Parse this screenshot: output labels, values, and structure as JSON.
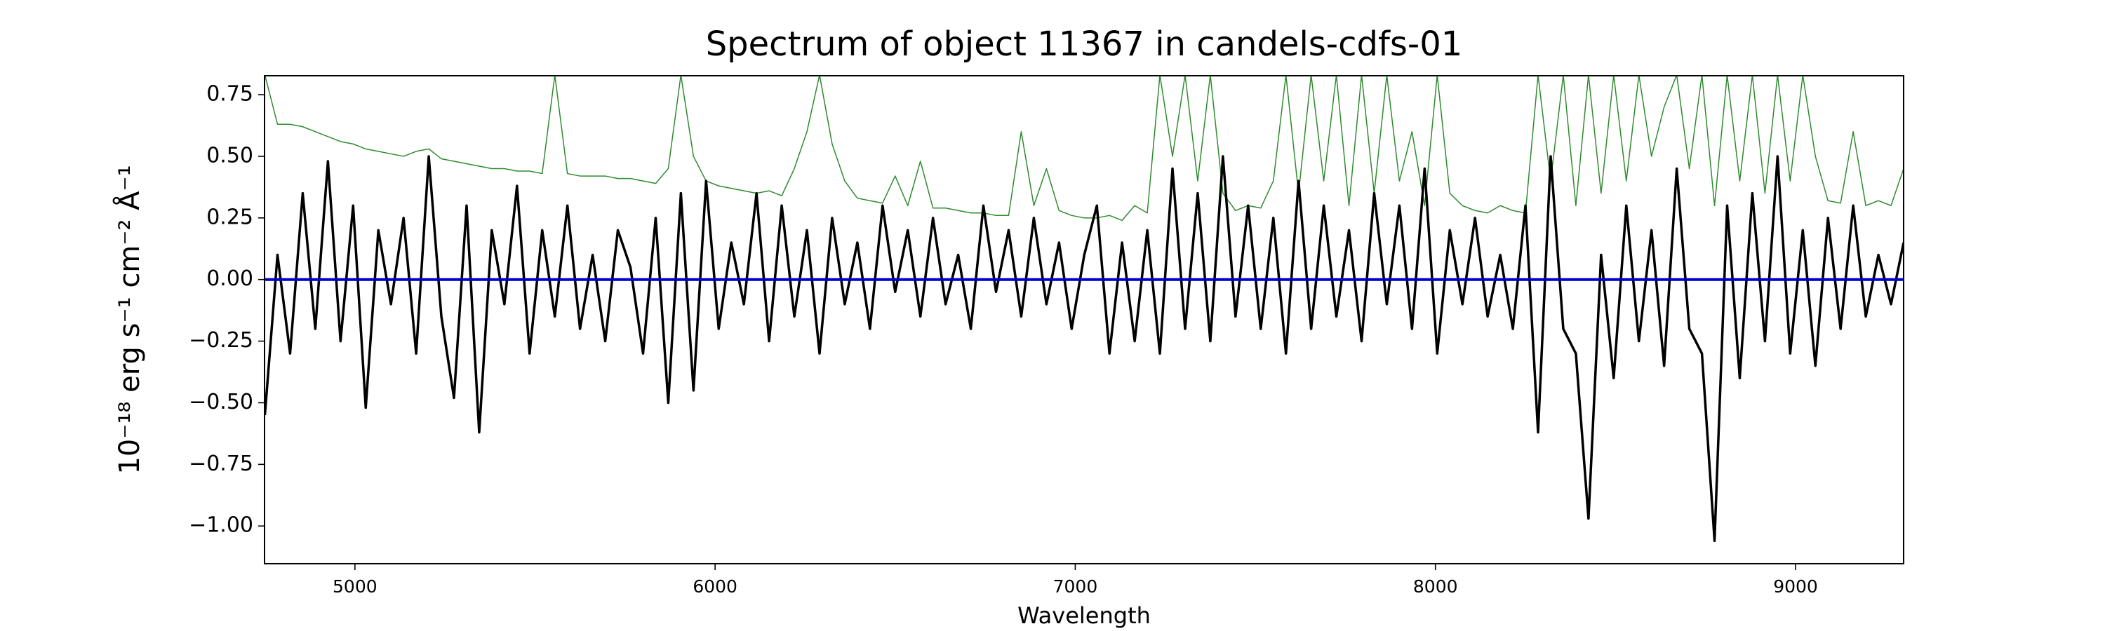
{
  "chart_data": {
    "type": "line",
    "title": "Spectrum of object 11367 in candels-cdfs-01",
    "xlabel": "Wavelength",
    "ylabel": "10⁻¹⁸ erg s⁻¹ cm⁻² Å⁻¹",
    "x": [
      4750,
      4785,
      4820,
      4855,
      4890,
      4925,
      4960,
      4995,
      5030,
      5065,
      5100,
      5135,
      5170,
      5205,
      5240,
      5275,
      5310,
      5345,
      5380,
      5415,
      5450,
      5485,
      5520,
      5555,
      5590,
      5625,
      5660,
      5695,
      5730,
      5765,
      5800,
      5835,
      5870,
      5905,
      5940,
      5975,
      6010,
      6045,
      6080,
      6115,
      6150,
      6185,
      6220,
      6255,
      6290,
      6325,
      6360,
      6395,
      6430,
      6465,
      6500,
      6535,
      6570,
      6605,
      6640,
      6675,
      6710,
      6745,
      6780,
      6815,
      6850,
      6885,
      6920,
      6955,
      6990,
      7025,
      7060,
      7095,
      7130,
      7165,
      7200,
      7235,
      7270,
      7305,
      7340,
      7375,
      7410,
      7445,
      7480,
      7515,
      7550,
      7585,
      7620,
      7655,
      7690,
      7725,
      7760,
      7795,
      7830,
      7865,
      7900,
      7935,
      7970,
      8005,
      8040,
      8075,
      8110,
      8145,
      8180,
      8215,
      8250,
      8285,
      8320,
      8355,
      8390,
      8425,
      8460,
      8495,
      8530,
      8565,
      8600,
      8635,
      8670,
      8705,
      8740,
      8775,
      8810,
      8845,
      8880,
      8915,
      8950,
      8985,
      9020,
      9055,
      9090,
      9125,
      9160,
      9195,
      9230,
      9265,
      9300
    ],
    "series": [
      {
        "color": "#2e8b2e",
        "width": 1.5,
        "values": [
          0.83,
          0.63,
          0.63,
          0.62,
          0.6,
          0.58,
          0.56,
          0.55,
          0.53,
          0.52,
          0.51,
          0.5,
          0.52,
          0.53,
          0.49,
          0.48,
          0.47,
          0.46,
          0.45,
          0.45,
          0.44,
          0.44,
          0.43,
          0.83,
          0.43,
          0.42,
          0.42,
          0.42,
          0.41,
          0.41,
          0.4,
          0.39,
          0.45,
          0.83,
          0.5,
          0.4,
          0.38,
          0.37,
          0.36,
          0.35,
          0.36,
          0.34,
          0.45,
          0.6,
          0.83,
          0.55,
          0.4,
          0.33,
          0.32,
          0.31,
          0.42,
          0.3,
          0.48,
          0.29,
          0.29,
          0.28,
          0.27,
          0.27,
          0.26,
          0.26,
          0.6,
          0.3,
          0.45,
          0.28,
          0.26,
          0.25,
          0.25,
          0.26,
          0.24,
          0.3,
          0.27,
          0.83,
          0.5,
          0.83,
          0.4,
          0.83,
          0.35,
          0.28,
          0.3,
          0.29,
          0.4,
          0.83,
          0.35,
          0.83,
          0.4,
          0.83,
          0.3,
          0.83,
          0.35,
          0.83,
          0.4,
          0.6,
          0.3,
          0.83,
          0.35,
          0.3,
          0.28,
          0.27,
          0.3,
          0.28,
          0.27,
          0.83,
          0.4,
          0.83,
          0.3,
          0.83,
          0.35,
          0.83,
          0.4,
          0.83,
          0.5,
          0.7,
          0.83,
          0.45,
          0.83,
          0.3,
          0.83,
          0.4,
          0.83,
          0.35,
          0.83,
          0.4,
          0.83,
          0.5,
          0.32,
          0.31,
          0.6,
          0.3,
          0.32,
          0.3,
          0.45
        ]
      },
      {
        "color": "#000000",
        "width": 3.5,
        "values": [
          -0.55,
          0.1,
          -0.3,
          0.35,
          -0.2,
          0.48,
          -0.25,
          0.3,
          -0.52,
          0.2,
          -0.1,
          0.25,
          -0.3,
          0.5,
          -0.15,
          -0.48,
          0.3,
          -0.62,
          0.2,
          -0.1,
          0.38,
          -0.3,
          0.2,
          -0.15,
          0.3,
          -0.2,
          0.1,
          -0.25,
          0.2,
          0.05,
          -0.3,
          0.25,
          -0.5,
          0.35,
          -0.45,
          0.4,
          -0.2,
          0.15,
          -0.1,
          0.35,
          -0.25,
          0.3,
          -0.15,
          0.2,
          -0.3,
          0.25,
          -0.1,
          0.15,
          -0.2,
          0.3,
          -0.05,
          0.2,
          -0.15,
          0.25,
          -0.1,
          0.1,
          -0.2,
          0.3,
          -0.05,
          0.2,
          -0.15,
          0.25,
          -0.1,
          0.15,
          -0.2,
          0.1,
          0.3,
          -0.3,
          0.15,
          -0.25,
          0.2,
          -0.3,
          0.45,
          -0.2,
          0.35,
          -0.25,
          0.5,
          -0.15,
          0.3,
          -0.2,
          0.25,
          -0.3,
          0.4,
          -0.2,
          0.3,
          -0.15,
          0.2,
          -0.25,
          0.35,
          -0.1,
          0.3,
          -0.2,
          0.45,
          -0.3,
          0.2,
          -0.1,
          0.25,
          -0.15,
          0.1,
          -0.2,
          0.3,
          -0.62,
          0.5,
          -0.2,
          -0.3,
          -0.97,
          0.1,
          -0.4,
          0.3,
          -0.25,
          0.2,
          -0.35,
          0.45,
          -0.2,
          -0.3,
          -1.06,
          0.3,
          -0.4,
          0.35,
          -0.25,
          0.5,
          -0.3,
          0.2,
          -0.35,
          0.25,
          -0.2,
          0.3,
          -0.15,
          0.1,
          -0.1,
          0.15
        ]
      },
      {
        "color": "#0000cc",
        "width": 4,
        "x": [
          4750,
          9300
        ],
        "values": [
          0,
          0
        ]
      }
    ],
    "xlim": [
      4749,
      9300
    ],
    "xticks": [
      5000,
      6000,
      7000,
      8000,
      9000
    ],
    "ylim": [
      -1.153,
      0.827
    ],
    "yticks": [
      {
        "value": 0.75,
        "label": "0.75"
      },
      {
        "value": 0.5,
        "label": "0.50"
      },
      {
        "value": 0.25,
        "label": "0.25"
      },
      {
        "value": 0,
        "label": "0.00"
      },
      {
        "value": -0.25,
        "label": "−0.25"
      },
      {
        "value": -0.5,
        "label": "−0.50"
      },
      {
        "value": -0.75,
        "label": "−0.75"
      },
      {
        "value": -1,
        "label": "−1.00"
      }
    ]
  }
}
